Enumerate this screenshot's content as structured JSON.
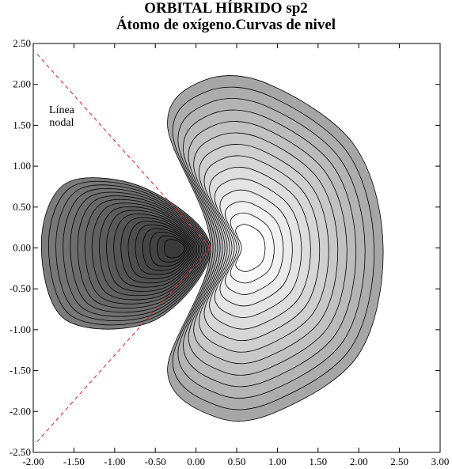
{
  "chart_data": {
    "type": "contour",
    "title": "ORBITAL HÍBRIDO sp2",
    "subtitle": "Átomo de oxígeno.Curvas de nivel",
    "xlabel": "",
    "ylabel": "",
    "xlim": [
      -2.0,
      3.0
    ],
    "ylim": [
      -2.5,
      2.5
    ],
    "x_ticks": [
      "-2.00",
      "-1.50",
      "-1.00",
      "-0.50",
      "0.00",
      "0.50",
      "1.00",
      "1.50",
      "2.00",
      "2.50",
      "3.00"
    ],
    "y_ticks": [
      "2.50",
      "2.00",
      "1.50",
      "1.00",
      "0.50",
      "0.00",
      "-0.50",
      "-1.00",
      "-1.50",
      "-2.00",
      "-2.50"
    ],
    "grid": false,
    "annotations": [
      {
        "text_lines": [
          "Línea",
          "nodal"
        ],
        "x": -1.65,
        "y": 1.65
      }
    ],
    "nodal_lines": [
      {
        "points": [
          [
            0.18,
            0.0
          ],
          [
            -1.98,
            2.4
          ]
        ],
        "color": "#e02020",
        "style": "dashed"
      },
      {
        "points": [
          [
            0.18,
            0.0
          ],
          [
            -1.98,
            -2.4
          ]
        ],
        "color": "#e02020",
        "style": "dashed"
      }
    ],
    "lobes": [
      {
        "name": "",
        "center": [
          -0.18,
          0.0
        ],
        "outer_boundary": [
          [
            0.18,
            0.0
          ],
          [
            -0.6,
            0.72
          ],
          [
            -1.58,
            0.8
          ],
          [
            -1.9,
            0.05
          ],
          [
            -1.6,
            -0.88
          ],
          [
            -0.5,
            -0.88
          ]
        ],
        "levels": 18,
        "fill_outer": "#7b7b7b",
        "fill_inner": "#3a3a3a"
      },
      {
        "name": "",
        "center": [
          0.62,
          0.0
        ],
        "outer_boundary": [
          [
            0.18,
            0.0
          ],
          [
            -0.35,
            1.5
          ],
          [
            0.1,
            2.05
          ],
          [
            0.9,
            2.0
          ],
          [
            1.95,
            1.25
          ],
          [
            2.3,
            0.0
          ],
          [
            2.0,
            -1.3
          ],
          [
            1.0,
            -2.0
          ],
          [
            0.25,
            -2.07
          ],
          [
            -0.35,
            -1.5
          ]
        ],
        "levels": 14,
        "fill_outer": "#a6a6a6",
        "fill_inner": "#ffffff"
      }
    ]
  }
}
